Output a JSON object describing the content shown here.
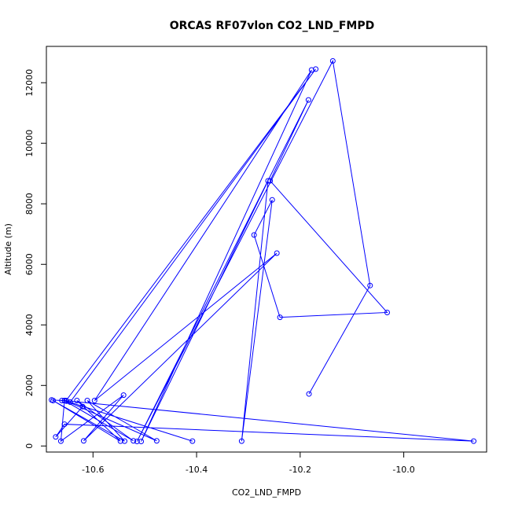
{
  "chart_data": {
    "type": "line",
    "title": "ORCAS RF07vlon CO2_LND_FMPD",
    "xlabel": "CO2_LND_FMPD",
    "ylabel": "Altitude (m)",
    "xlim": [
      -10.69,
      -9.84
    ],
    "ylim": [
      -200,
      13200
    ],
    "xticks": [
      -10.6,
      -10.4,
      -10.2,
      -10.0
    ],
    "xtick_labels": [
      "-10.6",
      "-10.4",
      "-10.2",
      "-10.0"
    ],
    "yticks": [
      0,
      2000,
      4000,
      6000,
      8000,
      10000,
      12000
    ],
    "ytick_labels": [
      "0",
      "2000",
      "4000",
      "6000",
      "8000",
      "10000",
      "12000"
    ],
    "grid": false,
    "marker": "open-circle",
    "color": "#0000ff",
    "series": [
      {
        "points": [
          [
            -10.183,
            1720
          ],
          [
            -10.065,
            5300
          ],
          [
            -10.137,
            12720
          ],
          [
            -10.515,
            150
          ],
          [
            -10.184,
            11430
          ],
          [
            -10.258,
            8760
          ],
          [
            -10.032,
            4410
          ],
          [
            -10.239,
            4250
          ],
          [
            -10.289,
            6970
          ],
          [
            -10.254,
            8130
          ],
          [
            -10.313,
            160
          ],
          [
            -10.262,
            8760
          ],
          [
            -10.507,
            150
          ],
          [
            -10.178,
            12420
          ],
          [
            -10.597,
            1500
          ],
          [
            -10.245,
            6370
          ],
          [
            -10.618,
            170
          ],
          [
            -10.541,
            1680
          ],
          [
            -10.662,
            160
          ],
          [
            -10.655,
            1500
          ],
          [
            -10.408,
            160
          ],
          [
            -10.651,
            1480
          ],
          [
            -10.477,
            170
          ],
          [
            -10.611,
            1500
          ],
          [
            -10.539,
            160
          ],
          [
            -10.677,
            1500
          ],
          [
            -10.547,
            160
          ],
          [
            -10.631,
            1500
          ],
          [
            -10.522,
            170
          ],
          [
            -10.655,
            1500
          ],
          [
            -9.865,
            160
          ],
          [
            -10.655,
            720
          ],
          [
            -10.672,
            300
          ],
          [
            -10.62,
            1300
          ],
          [
            -10.644,
            1450
          ],
          [
            -10.17,
            12450
          ],
          [
            -10.652,
            1500
          ],
          [
            -10.66,
            1500
          ],
          [
            -10.68,
            1520
          ]
        ]
      }
    ]
  }
}
